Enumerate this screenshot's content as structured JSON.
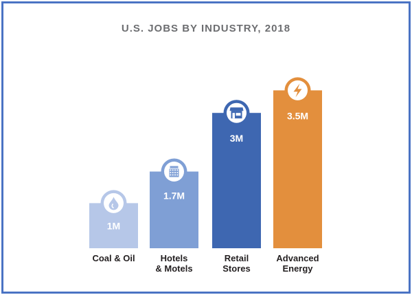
{
  "chart_data": {
    "type": "bar",
    "title": "U.S. JOBS BY INDUSTRY, 2018",
    "categories": [
      [
        "Coal & Oil"
      ],
      [
        "Hotels",
        "& Motels"
      ],
      [
        "Retail",
        "Stores"
      ],
      [
        "Advanced",
        "Energy"
      ]
    ],
    "values": [
      1,
      1.7,
      3,
      3.5
    ],
    "data_labels": [
      "1M",
      "1.7M",
      "3M",
      "3.5M"
    ],
    "unit": "million jobs",
    "colors": [
      "#b6c7e8",
      "#7f9fd5",
      "#3e67b1",
      "#e38f3d"
    ],
    "icons": [
      "oil-drop-icon",
      "hotel-icon",
      "store-icon",
      "lightning-icon"
    ],
    "xlabel": "",
    "ylabel": "",
    "ylim": [
      0,
      3.5
    ],
    "grid": false,
    "legend": "none"
  },
  "frame_color": "#4a73c4"
}
